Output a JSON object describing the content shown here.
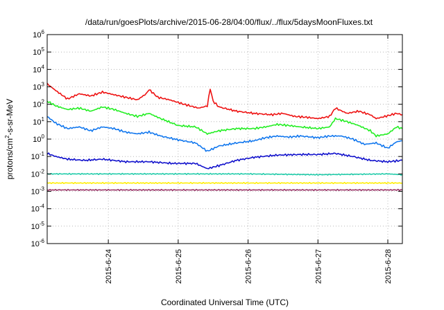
{
  "chart_data": {
    "type": "line",
    "title": "/data/run/goesPlots/archive/2015-06-28/04:00/flux/../flux/5daysMoonFluxes.txt",
    "xlabel": "Coordinated Universal Time (UTC)",
    "ylabel_parts": {
      "pre": "protons/cm",
      "exp": "2",
      "post": "-s-sr-MeV"
    },
    "y_scale": "log",
    "ylim": [
      1e-06,
      1000000.0
    ],
    "y_ticks": [
      {
        "value": 1000000.0,
        "base": "10",
        "exp": "6"
      },
      {
        "value": 100000.0,
        "base": "10",
        "exp": "5"
      },
      {
        "value": 10000.0,
        "base": "10",
        "exp": "4"
      },
      {
        "value": 1000.0,
        "base": "10",
        "exp": "3"
      },
      {
        "value": 100.0,
        "base": "10",
        "exp": "2"
      },
      {
        "value": 10.0,
        "base": "10",
        "exp": "1"
      },
      {
        "value": 1.0,
        "base": "10",
        "exp": "0"
      },
      {
        "value": 0.1,
        "base": "10",
        "exp": "-1"
      },
      {
        "value": 0.01,
        "base": "10",
        "exp": "-2"
      },
      {
        "value": 0.001,
        "base": "10",
        "exp": "-3"
      },
      {
        "value": 0.0001,
        "base": "10",
        "exp": "-4"
      },
      {
        "value": 1e-05,
        "base": "10",
        "exp": "-5"
      },
      {
        "value": 1e-06,
        "base": "10",
        "exp": "-6"
      }
    ],
    "xlim": [
      "2015-06-23 03:00",
      "2015-06-28 05:00"
    ],
    "x_ticks": [
      {
        "value": "2015-06-24 00:00",
        "label": "2015-6-24"
      },
      {
        "value": "2015-06-25 00:00",
        "label": "2015-6-25"
      },
      {
        "value": "2015-06-26 00:00",
        "label": "2015-6-26"
      },
      {
        "value": "2015-06-27 00:00",
        "label": "2015-6-27"
      },
      {
        "value": "2015-06-28 00:00",
        "label": "2015-6-28"
      }
    ],
    "grid": true,
    "series": [
      {
        "color": "#ee1111",
        "x": [
          "2015-06-23 03:00",
          "2015-06-23 06:00",
          "2015-06-23 10:00",
          "2015-06-23 14:00",
          "2015-06-23 18:00",
          "2015-06-23 22:00",
          "2015-06-24 02:00",
          "2015-06-24 06:00",
          "2015-06-24 10:00",
          "2015-06-24 13:00",
          "2015-06-24 14:00",
          "2015-06-24 17:00",
          "2015-06-24 21:00",
          "2015-06-25 02:00",
          "2015-06-25 07:00",
          "2015-06-25 10:00",
          "2015-06-25 11:00",
          "2015-06-25 12:00",
          "2015-06-25 14:00",
          "2015-06-25 20:00",
          "2015-06-26 02:00",
          "2015-06-26 08:00",
          "2015-06-26 12:00",
          "2015-06-26 16:00",
          "2015-06-26 20:00",
          "2015-06-27 00:00",
          "2015-06-27 04:00",
          "2015-06-27 06:00",
          "2015-06-27 10:00",
          "2015-06-27 14:00",
          "2015-06-27 18:00",
          "2015-06-27 20:00",
          "2015-06-28 00:00",
          "2015-06-28 03:00",
          "2015-06-28 05:00"
        ],
        "y": [
          1500,
          600,
          200,
          400,
          300,
          500,
          350,
          250,
          180,
          400,
          700,
          250,
          180,
          100,
          60,
          80,
          800,
          150,
          70,
          40,
          30,
          25,
          30,
          20,
          18,
          15,
          20,
          60,
          30,
          40,
          25,
          15,
          22,
          30,
          25
        ]
      },
      {
        "color": "#22ee22",
        "x": [
          "2015-06-23 03:00",
          "2015-06-23 06:00",
          "2015-06-23 10:00",
          "2015-06-23 14:00",
          "2015-06-23 18:00",
          "2015-06-23 22:00",
          "2015-06-24 02:00",
          "2015-06-24 06:00",
          "2015-06-24 10:00",
          "2015-06-24 14:00",
          "2015-06-24 18:00",
          "2015-06-25 00:00",
          "2015-06-25 06:00",
          "2015-06-25 10:00",
          "2015-06-25 14:00",
          "2015-06-25 20:00",
          "2015-06-26 02:00",
          "2015-06-26 06:00",
          "2015-06-26 10:00",
          "2015-06-26 14:00",
          "2015-06-26 18:00",
          "2015-06-27 00:00",
          "2015-06-27 04:00",
          "2015-06-27 06:00",
          "2015-06-27 10:00",
          "2015-06-27 14:00",
          "2015-06-27 18:00",
          "2015-06-27 20:00",
          "2015-06-28 00:00",
          "2015-06-28 03:00",
          "2015-06-28 05:00"
        ],
        "y": [
          150,
          80,
          50,
          60,
          40,
          70,
          50,
          30,
          20,
          30,
          15,
          6,
          5,
          2,
          3,
          4,
          4,
          5,
          7,
          6,
          5,
          4,
          5,
          15,
          10,
          6,
          3,
          1.5,
          2,
          5,
          4
        ]
      },
      {
        "color": "#1177ee",
        "x": [
          "2015-06-23 03:00",
          "2015-06-23 06:00",
          "2015-06-23 10:00",
          "2015-06-23 14:00",
          "2015-06-23 18:00",
          "2015-06-23 22:00",
          "2015-06-24 02:00",
          "2015-06-24 06:00",
          "2015-06-24 10:00",
          "2015-06-24 14:00",
          "2015-06-24 18:00",
          "2015-06-25 00:00",
          "2015-06-25 06:00",
          "2015-06-25 10:00",
          "2015-06-25 14:00",
          "2015-06-25 20:00",
          "2015-06-26 02:00",
          "2015-06-26 06:00",
          "2015-06-26 10:00",
          "2015-06-26 14:00",
          "2015-06-26 18:00",
          "2015-06-27 00:00",
          "2015-06-27 04:00",
          "2015-06-27 08:00",
          "2015-06-27 12:00",
          "2015-06-27 16:00",
          "2015-06-27 20:00",
          "2015-06-28 00:00",
          "2015-06-28 03:00",
          "2015-06-28 05:00"
        ],
        "y": [
          20,
          8,
          4,
          5,
          3,
          5,
          4,
          2.5,
          2,
          2.5,
          1.5,
          0.9,
          0.6,
          0.2,
          0.4,
          0.6,
          0.8,
          1.2,
          1.5,
          1.3,
          1.5,
          1.2,
          1.5,
          1.5,
          1.0,
          0.5,
          0.6,
          0.3,
          0.7,
          0.8
        ]
      },
      {
        "color": "#1111cc",
        "x": [
          "2015-06-23 03:00",
          "2015-06-23 06:00",
          "2015-06-23 10:00",
          "2015-06-23 16:00",
          "2015-06-23 22:00",
          "2015-06-24 06:00",
          "2015-06-24 14:00",
          "2015-06-24 22:00",
          "2015-06-25 06:00",
          "2015-06-25 10:00",
          "2015-06-25 14:00",
          "2015-06-25 20:00",
          "2015-06-26 02:00",
          "2015-06-26 10:00",
          "2015-06-26 18:00",
          "2015-06-27 00:00",
          "2015-06-27 06:00",
          "2015-06-27 12:00",
          "2015-06-27 18:00",
          "2015-06-28 00:00",
          "2015-06-28 05:00"
        ],
        "y": [
          0.15,
          0.1,
          0.07,
          0.06,
          0.07,
          0.05,
          0.05,
          0.04,
          0.04,
          0.02,
          0.03,
          0.06,
          0.09,
          0.12,
          0.13,
          0.13,
          0.15,
          0.1,
          0.06,
          0.05,
          0.06
        ]
      },
      {
        "color": "#22ccaa",
        "x": [
          "2015-06-23 03:00",
          "2015-06-24 00:00",
          "2015-06-25 00:00",
          "2015-06-26 00:00",
          "2015-06-27 00:00",
          "2015-06-28 00:00",
          "2015-06-28 05:00"
        ],
        "y": [
          0.01,
          0.01,
          0.01,
          0.01,
          0.009,
          0.01,
          0.009
        ]
      },
      {
        "color": "#ffee00",
        "x": [
          "2015-06-23 03:00",
          "2015-06-24 00:00",
          "2015-06-25 00:00",
          "2015-06-26 00:00",
          "2015-06-27 00:00",
          "2015-06-28 00:00",
          "2015-06-28 05:00"
        ],
        "y": [
          0.003,
          0.003,
          0.003,
          0.003,
          0.003,
          0.003,
          0.003
        ]
      },
      {
        "color": "#993366",
        "x": [
          "2015-06-23 03:00",
          "2015-06-24 00:00",
          "2015-06-25 00:00",
          "2015-06-26 00:00",
          "2015-06-27 00:00",
          "2015-06-28 00:00",
          "2015-06-28 05:00"
        ],
        "y": [
          0.0012,
          0.0012,
          0.0012,
          0.0012,
          0.0012,
          0.0012,
          0.0012
        ]
      }
    ]
  }
}
